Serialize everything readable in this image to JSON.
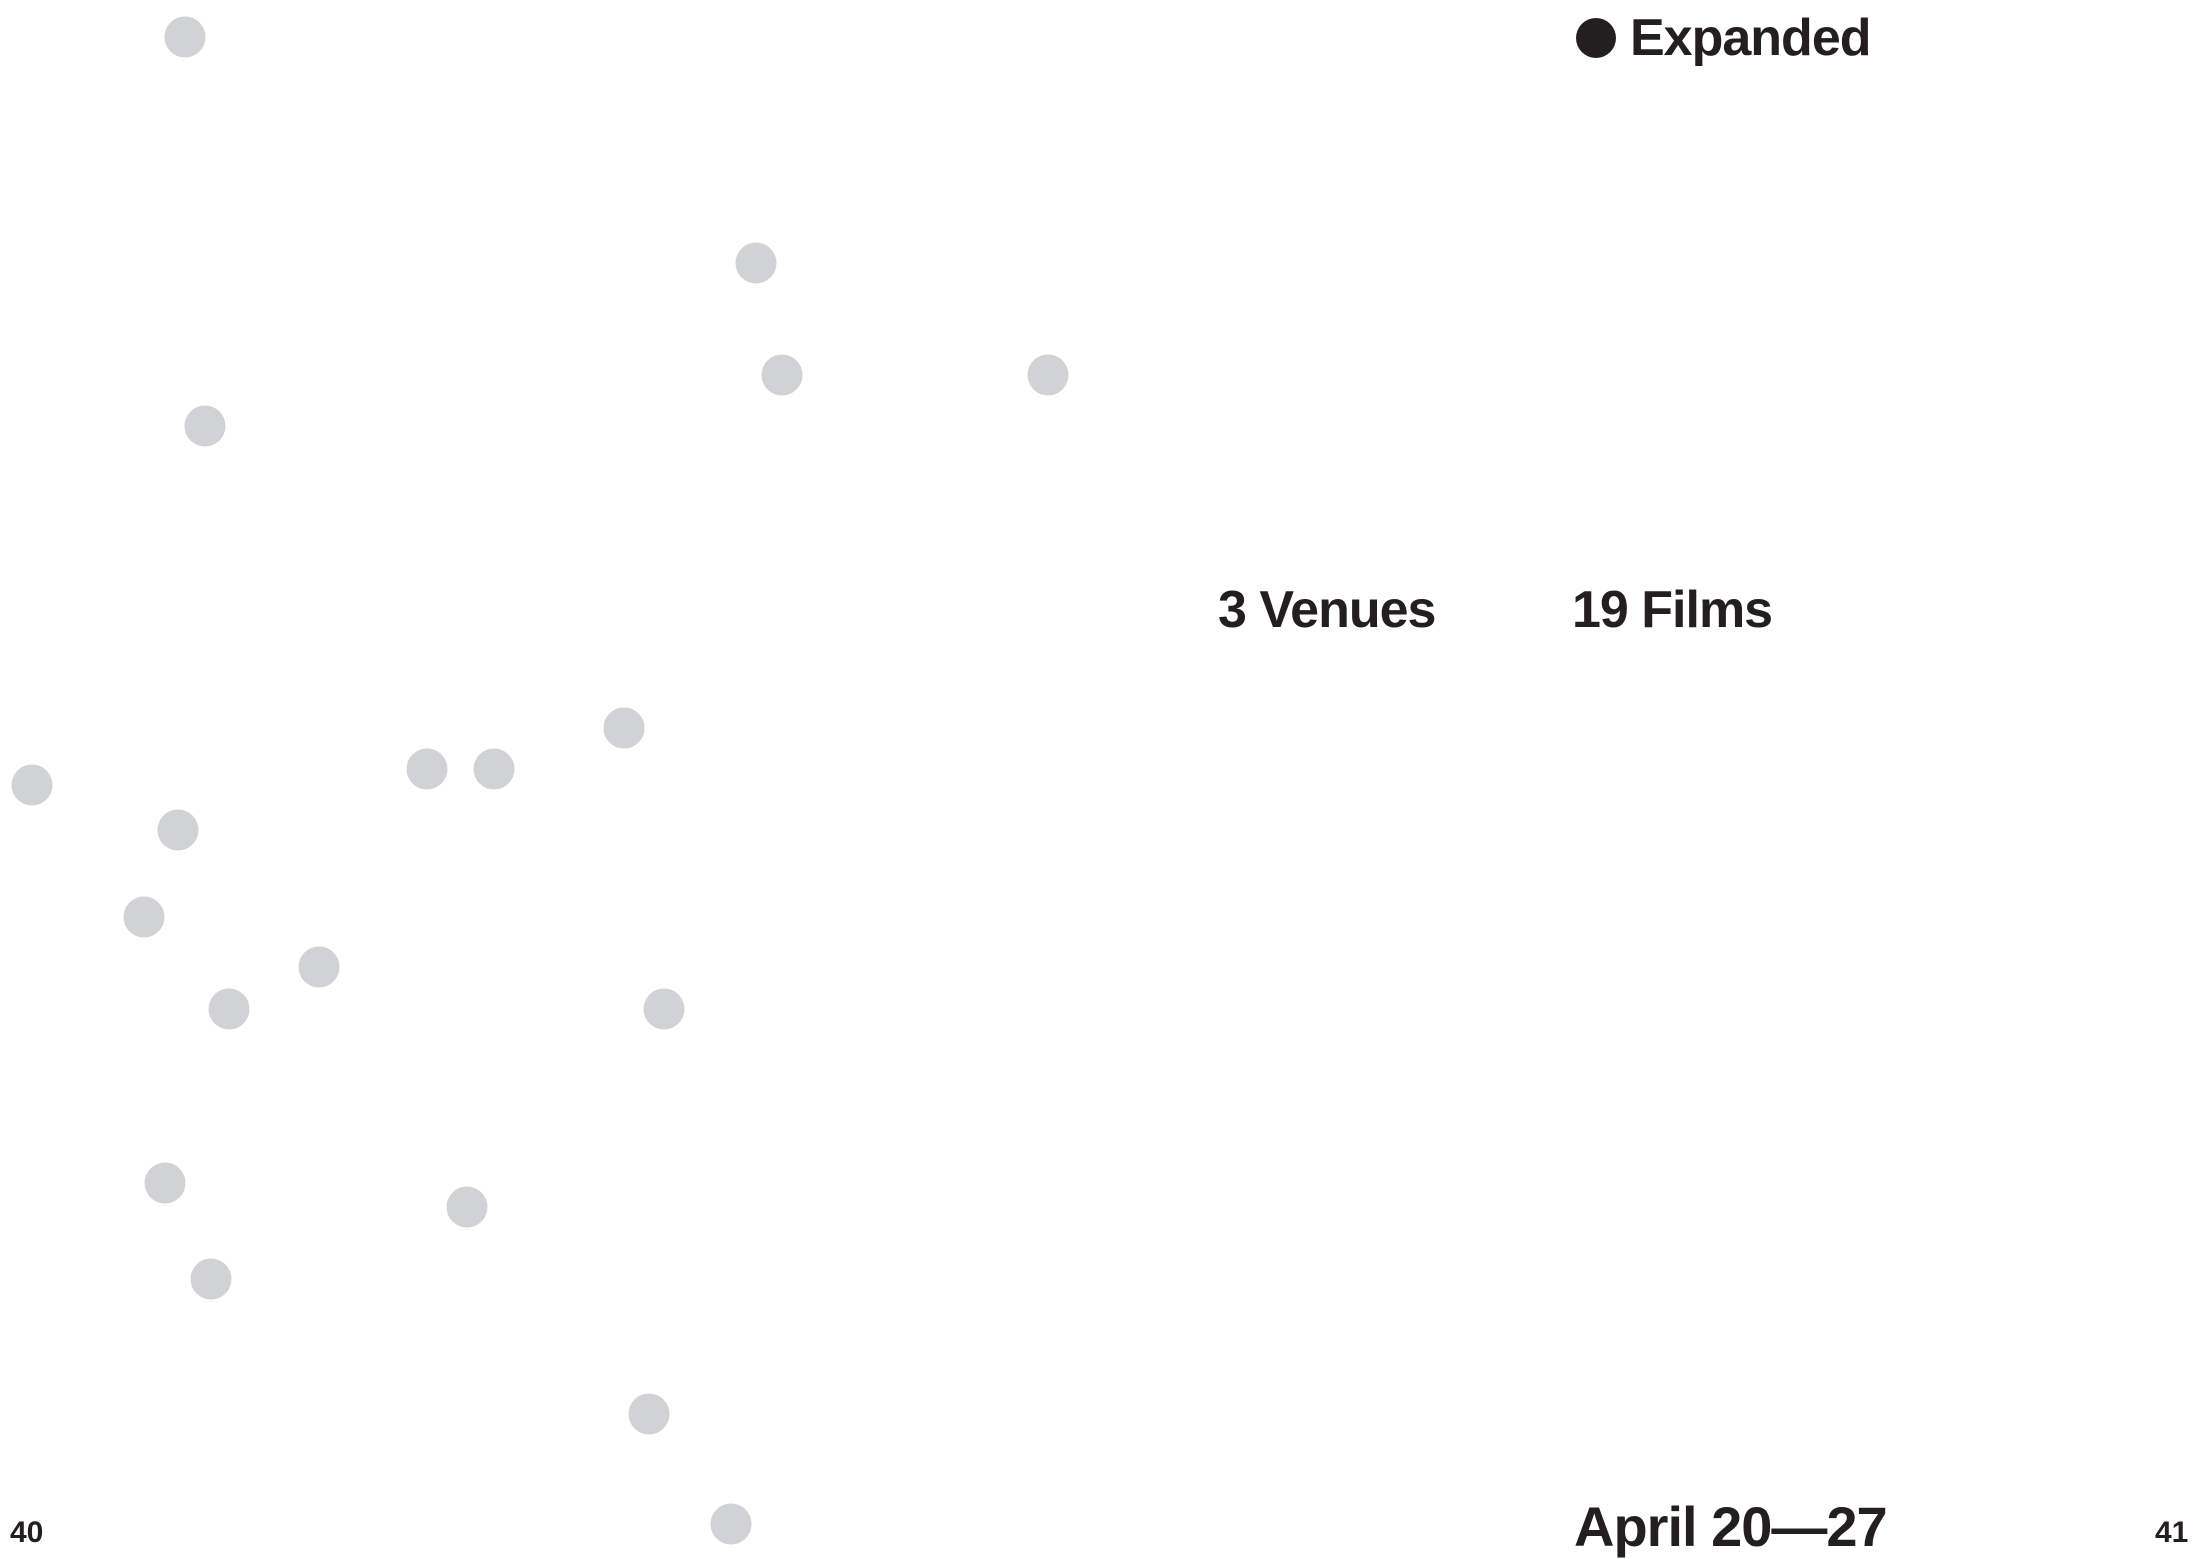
{
  "legend": {
    "label": "Expanded",
    "marker_color": "#231f20"
  },
  "stats": {
    "venues": "3 Venues",
    "films": "19 Films"
  },
  "dates": "April 20—27",
  "pages": {
    "left": "40",
    "right": "41"
  },
  "colors": {
    "dot": "#d1d2d4",
    "text": "#231f20",
    "background": "#ffffff"
  }
}
